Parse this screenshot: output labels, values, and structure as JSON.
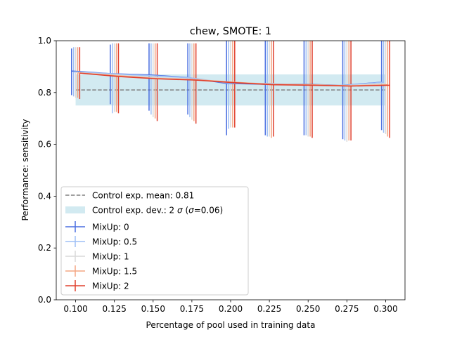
{
  "chart_data": {
    "type": "line",
    "title": "chew, SMOTE: 1",
    "xlabel": "Percentage of pool used in training data",
    "ylabel": "Performance: sensitivity",
    "xlim": [
      0.0875,
      0.3125
    ],
    "ylim": [
      0.0,
      1.0
    ],
    "x": [
      0.1,
      0.125,
      0.15,
      0.175,
      0.2,
      0.225,
      0.25,
      0.275,
      0.3
    ],
    "x_tick_labels": [
      "0.100",
      "0.125",
      "0.150",
      "0.175",
      "0.200",
      "0.225",
      "0.250",
      "0.275",
      "0.300"
    ],
    "y_ticks": [
      0.0,
      0.2,
      0.4,
      0.6,
      0.8,
      1.0
    ],
    "y_tick_labels": [
      "0.0",
      "0.2",
      "0.4",
      "0.6",
      "0.8",
      "1.0"
    ],
    "grid": false,
    "legend_position": "lower-left",
    "control": {
      "mean": 0.81,
      "band": [
        0.75,
        0.87
      ],
      "mean_label": "Control exp. mean: 0.81",
      "band_label_prefix": "Control exp. dev.: 2 ",
      "band_label_sigma": "σ",
      "band_label_paren": " (",
      "band_label_sigma2": "σ",
      "band_label_suffix": "=0.06)",
      "line_color": "#808080",
      "band_color": "#add8e6"
    },
    "series": [
      {
        "name": "MixUp: 0",
        "color": "#4a6ee0",
        "values": [
          0.883,
          0.873,
          0.868,
          0.858,
          0.835,
          0.832,
          0.832,
          0.828,
          0.84
        ],
        "err_low": [
          0.79,
          0.755,
          0.73,
          0.715,
          0.635,
          0.635,
          0.635,
          0.62,
          0.655
        ],
        "err_high": [
          0.97,
          0.985,
          0.99,
          0.99,
          1.0,
          1.0,
          1.0,
          1.0,
          1.0
        ]
      },
      {
        "name": "MixUp: 0.5",
        "color": "#9ebff5",
        "values": [
          0.88,
          0.872,
          0.865,
          0.857,
          0.837,
          0.835,
          0.83,
          0.828,
          0.84
        ],
        "err_low": [
          0.785,
          0.72,
          0.715,
          0.705,
          0.66,
          0.63,
          0.635,
          0.615,
          0.645
        ],
        "err_high": [
          0.975,
          0.99,
          0.99,
          0.99,
          1.0,
          1.0,
          1.0,
          1.0,
          1.0
        ]
      },
      {
        "name": "MixUp: 1",
        "color": "#d9d9d9",
        "values": [
          0.878,
          0.868,
          0.858,
          0.852,
          0.84,
          0.833,
          0.83,
          0.827,
          0.835
        ],
        "err_low": [
          0.78,
          0.725,
          0.705,
          0.695,
          0.665,
          0.63,
          0.63,
          0.61,
          0.64
        ],
        "err_high": [
          0.975,
          0.99,
          0.99,
          0.99,
          1.0,
          1.0,
          1.0,
          1.0,
          1.0
        ]
      },
      {
        "name": "MixUp: 1.5",
        "color": "#f4a582",
        "values": [
          0.876,
          0.865,
          0.855,
          0.85,
          0.84,
          0.832,
          0.83,
          0.826,
          0.83
        ],
        "err_low": [
          0.78,
          0.725,
          0.7,
          0.69,
          0.665,
          0.625,
          0.63,
          0.615,
          0.63
        ],
        "err_high": [
          0.975,
          0.99,
          0.99,
          0.99,
          1.0,
          1.0,
          1.0,
          1.0,
          1.0
        ]
      },
      {
        "name": "MixUp: 2",
        "color": "#e0402e",
        "values": [
          0.875,
          0.862,
          0.853,
          0.848,
          0.838,
          0.83,
          0.828,
          0.825,
          0.828
        ],
        "err_low": [
          0.775,
          0.72,
          0.69,
          0.68,
          0.665,
          0.63,
          0.625,
          0.615,
          0.625
        ],
        "err_high": [
          0.975,
          0.99,
          0.99,
          0.99,
          1.0,
          1.0,
          1.0,
          1.0,
          1.0
        ]
      }
    ]
  }
}
